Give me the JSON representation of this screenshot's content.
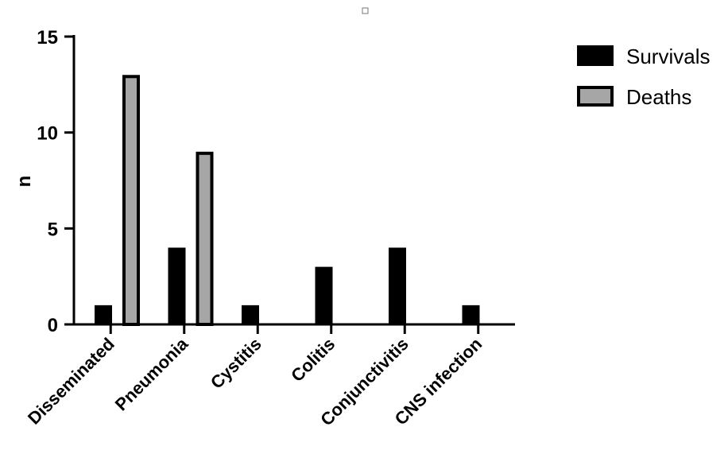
{
  "chart_data": {
    "type": "bar",
    "title": "",
    "xlabel": "",
    "ylabel": "n",
    "ylim": [
      0,
      15
    ],
    "yticks": [
      0,
      5,
      10,
      15
    ],
    "categories": [
      "Disseminated",
      "Pneumonia",
      "Cystitis",
      "Colitis",
      "Conjunctivitis",
      "CNS infection"
    ],
    "series": [
      {
        "name": "Survivals",
        "values": [
          1,
          4,
          1,
          3,
          4,
          1
        ],
        "color": "#000000"
      },
      {
        "name": "Deaths",
        "values": [
          13,
          9,
          0,
          0,
          0,
          0
        ],
        "color": "#a6a6a6"
      }
    ],
    "legend_position": "top-right",
    "grid": false
  }
}
